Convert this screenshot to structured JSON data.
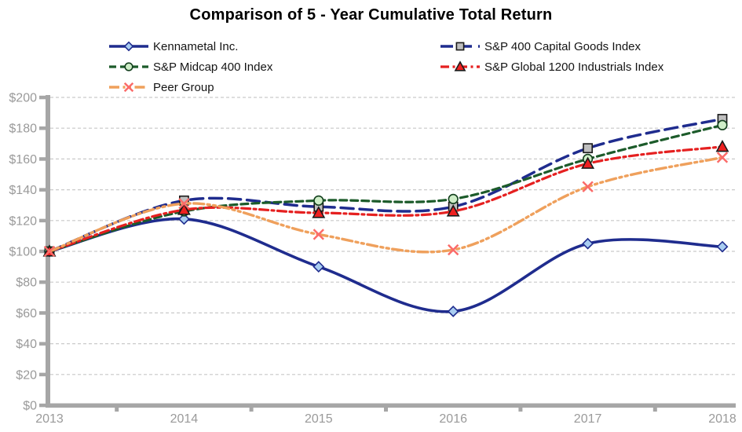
{
  "chart": {
    "title": "Comparison of 5 - Year Cumulative Total Return",
    "y_axis_labels": [
      "$0",
      "$20",
      "$40",
      "$60",
      "$80",
      "$100",
      "$120",
      "$140",
      "$160",
      "$180",
      "$200"
    ],
    "x_axis_labels": [
      "2013",
      "2014",
      "2015",
      "2016",
      "2017",
      "2018"
    ],
    "colors": {
      "axis": "#a6a6a6",
      "gridline": "#c9c9c9",
      "tick_label": "#9a9a9a",
      "title": "#000000",
      "background": "#ffffff"
    }
  },
  "chart_data": {
    "type": "line",
    "title": "Comparison of 5 - Year Cumulative Total Return",
    "x": [
      2013,
      2014,
      2015,
      2016,
      2017,
      2018
    ],
    "categories": [
      "2013",
      "2014",
      "2015",
      "2016",
      "2017",
      "2018"
    ],
    "series": [
      {
        "name": "Kennametal Inc.",
        "values": [
          100,
          121,
          90,
          61,
          105,
          103
        ],
        "color": "#1f2c8e",
        "dash": "solid",
        "line_width": 3.6,
        "marker": "diamond",
        "marker_fill": "#a9cdf1",
        "marker_stroke": "#1f2c8e"
      },
      {
        "name": "S&P 400 Capital Goods Index",
        "values": [
          100,
          133,
          129,
          129,
          167,
          186
        ],
        "color": "#1f2c8e",
        "dash": "long-dash",
        "line_width": 3.5,
        "marker": "square",
        "marker_fill": "#bfbfbf",
        "marker_stroke": "#1a1a1a"
      },
      {
        "name": "S&P Midcap 400 Index",
        "values": [
          100,
          126,
          133,
          134,
          160,
          182
        ],
        "color": "#1c5b2a",
        "dash": "dash",
        "line_width": 3.2,
        "marker": "circle",
        "marker_fill": "#cfeec8",
        "marker_stroke": "#133f1d"
      },
      {
        "name": "S&P Global 1200 Industrials Index",
        "values": [
          100,
          127,
          125,
          126,
          157,
          168
        ],
        "color": "#e52020",
        "dash": "dash-dot",
        "line_width": 3.2,
        "marker": "triangle",
        "marker_fill": "#ee2020",
        "marker_stroke": "#1a1a1a"
      },
      {
        "name": "Peer Group",
        "values": [
          100,
          131,
          111,
          101,
          142,
          161
        ],
        "color": "#efa05c",
        "dash": "dash-dot-dot",
        "line_width": 3.4,
        "marker": "x",
        "marker_fill": "none",
        "marker_stroke": "#fb6b69"
      }
    ],
    "ylabel_prefix": "$",
    "ylim": [
      0,
      200
    ],
    "y_step": 20,
    "grid": true,
    "legend_position": "top",
    "smoothed_lines": true
  }
}
